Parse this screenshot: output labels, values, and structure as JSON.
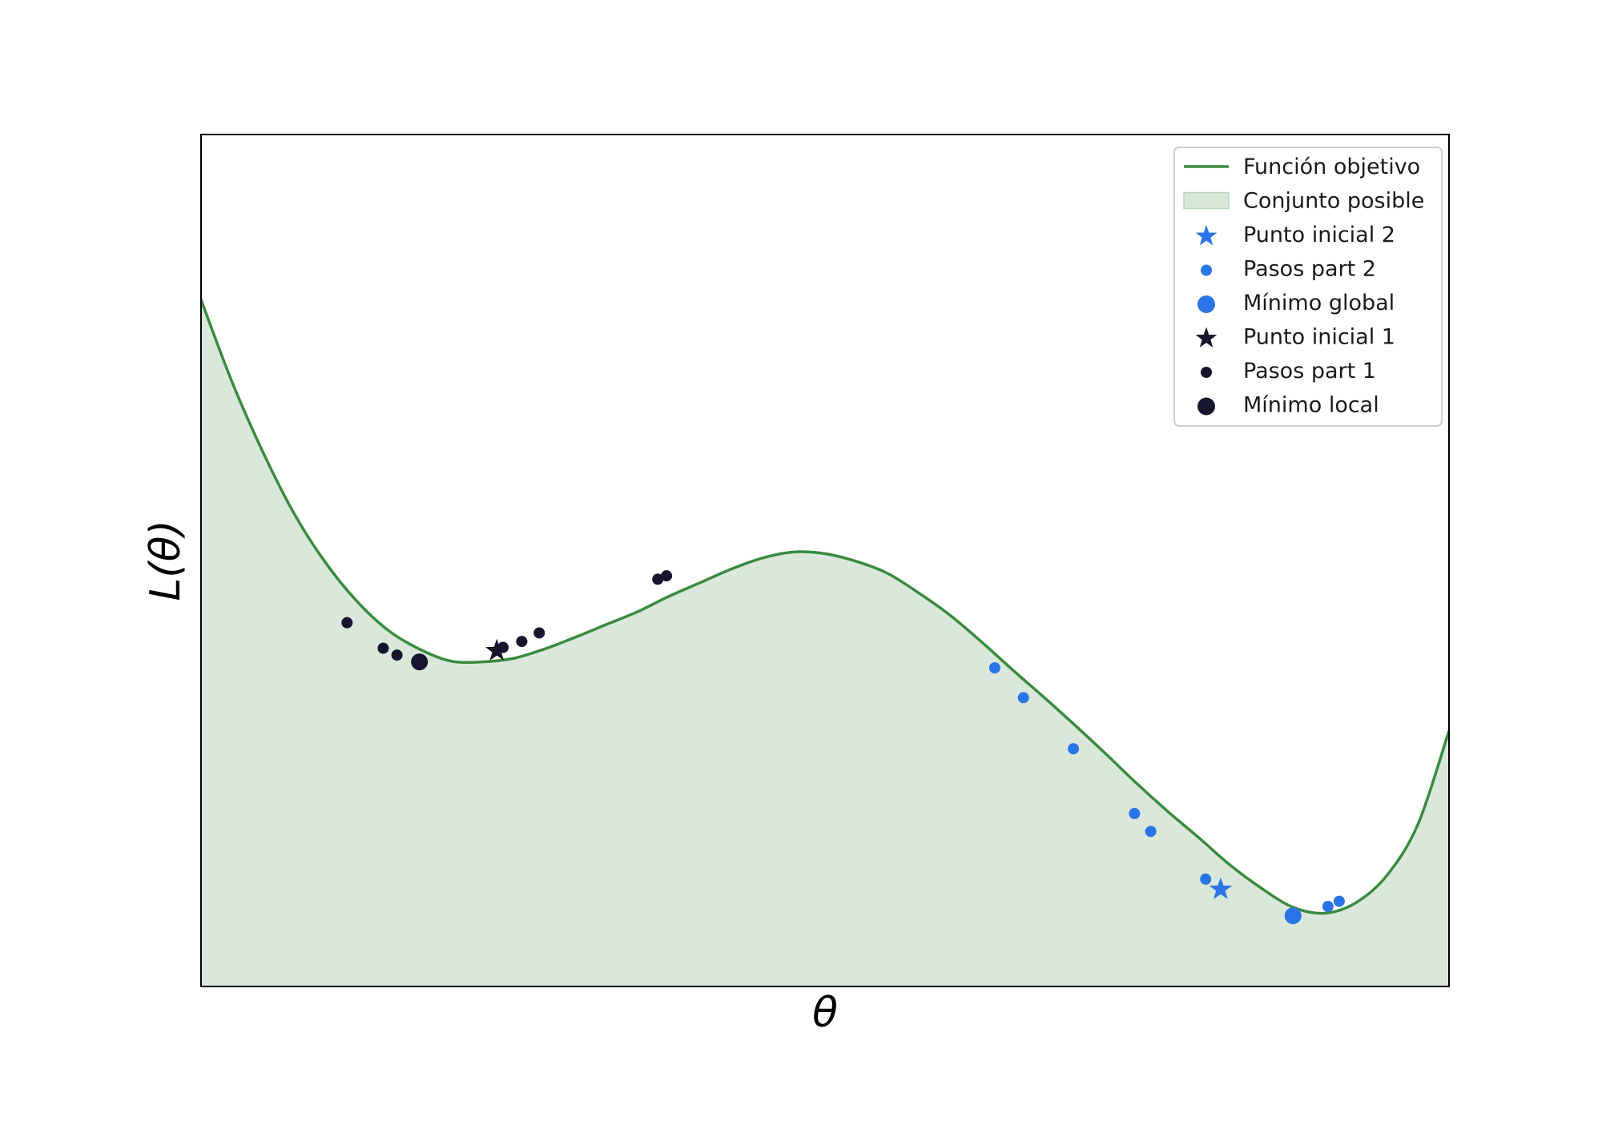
{
  "chart_data": {
    "type": "line",
    "title": "",
    "xlabel": "θ",
    "ylabel": "L(θ)",
    "xlim": [
      0,
      1
    ],
    "ylim": [
      0,
      1
    ],
    "grid": false,
    "ticks_visible": false,
    "legend_placement": "top-right",
    "series": [
      {
        "name": "Función objetivo",
        "kind": "line",
        "color": "#3a8a3f",
        "x": [
          0.0,
          0.025,
          0.05,
          0.075,
          0.1,
          0.125,
          0.15,
          0.175,
          0.2,
          0.225,
          0.25,
          0.275,
          0.3,
          0.325,
          0.35,
          0.375,
          0.4,
          0.425,
          0.45,
          0.475,
          0.5,
          0.525,
          0.55,
          0.575,
          0.6,
          0.625,
          0.65,
          0.675,
          0.7,
          0.725,
          0.75,
          0.775,
          0.8,
          0.825,
          0.85,
          0.875,
          0.9,
          0.925,
          0.95,
          0.975,
          1.0
        ],
        "y": [
          0.806,
          0.709,
          0.626,
          0.554,
          0.497,
          0.452,
          0.418,
          0.396,
          0.382,
          0.381,
          0.385,
          0.396,
          0.41,
          0.425,
          0.44,
          0.458,
          0.474,
          0.49,
          0.503,
          0.51,
          0.508,
          0.499,
          0.485,
          0.462,
          0.436,
          0.405,
          0.372,
          0.34,
          0.307,
          0.273,
          0.238,
          0.205,
          0.174,
          0.142,
          0.115,
          0.093,
          0.086,
          0.098,
          0.13,
          0.19,
          0.3
        ]
      },
      {
        "name": "Conjunto posible",
        "kind": "area",
        "color": "#d9e8da"
      },
      {
        "name": "Punto inicial 2",
        "kind": "star",
        "color": "#2a74e8",
        "x": [
          0.817
        ],
        "y": [
          0.114
        ]
      },
      {
        "name": "Pasos part 2",
        "kind": "scatter",
        "color": "#2a74e8",
        "x": [
          0.636,
          0.659,
          0.699,
          0.748,
          0.761,
          0.805,
          0.903,
          0.912
        ],
        "y": [
          0.374,
          0.339,
          0.279,
          0.203,
          0.182,
          0.126,
          0.094,
          0.1
        ]
      },
      {
        "name": "Mínimo global",
        "kind": "scatter-large",
        "color": "#2a74e8",
        "x": [
          0.875
        ],
        "y": [
          0.083
        ]
      },
      {
        "name": "Punto inicial 1",
        "kind": "star",
        "color": "#15152e",
        "x": [
          0.237
        ],
        "y": [
          0.394
        ]
      },
      {
        "name": "Pasos part 1",
        "kind": "scatter",
        "color": "#15152e",
        "x": [
          0.117,
          0.146,
          0.157,
          0.242,
          0.257,
          0.271,
          0.366,
          0.373
        ],
        "y": [
          0.427,
          0.397,
          0.389,
          0.398,
          0.405,
          0.415,
          0.478,
          0.482
        ]
      },
      {
        "name": "Mínimo local",
        "kind": "scatter-large",
        "color": "#15152e",
        "x": [
          0.175
        ],
        "y": [
          0.381
        ]
      }
    ]
  }
}
